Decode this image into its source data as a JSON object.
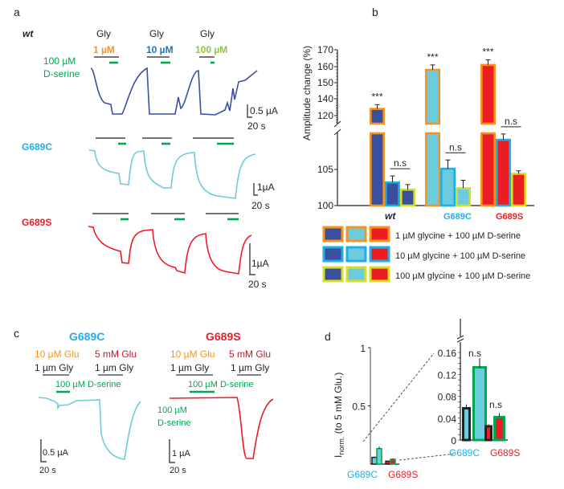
{
  "panel_labels": {
    "a": "a",
    "b": "b",
    "c": "c",
    "d": "d"
  },
  "colors": {
    "wt": "#3a4fa0",
    "g689c": "#6ccbdc",
    "g689s": "#ec1c24",
    "g689c_text": "#1cb0ea",
    "dserine": "#00a650",
    "gly_1uM": "#f7941d",
    "gly_10uM": "#1c75bc",
    "gly_100uM": "#8dc63f",
    "border_1uM": "#f7941d",
    "border_10uM": "#1cb0ea",
    "border_100uM": "#d7df23",
    "glu_5mM": "#be1e2d",
    "glu_10uM": "#f7941d"
  },
  "panel_a": {
    "genotypes": {
      "wt": "wt",
      "g689c": "G689C",
      "g689s": "G689S"
    },
    "gly_label": "Gly",
    "concentrations": [
      "1 µM",
      "10 µM",
      "100 µM"
    ],
    "dserine_label": [
      "100 µM",
      "D-serine"
    ],
    "scale_bars": {
      "wt": {
        "current": "0.5 µA",
        "time": "20 s"
      },
      "g689c": {
        "current": "1µA",
        "time": "20 s"
      },
      "g689s": {
        "current": "1µA",
        "time": "20 s"
      }
    }
  },
  "panel_c": {
    "titles": [
      "G689C",
      "G689S"
    ],
    "glu_low": "10 µM Glu",
    "glu_high": "5 mM Glu",
    "gly": "1 µm Gly",
    "dserine_bar_label": "100 µM D-serine",
    "dserine_side_label": [
      "100 µM",
      "D-serine"
    ],
    "scale_bars": [
      {
        "current": "0.5 µA",
        "time": "20 s"
      },
      {
        "current": "1 µA",
        "time": "20 s"
      }
    ]
  },
  "chart_data": [
    {
      "type": "bar",
      "panel": "b",
      "ylabel": "Amplitude change  (%)",
      "ylim": [
        100,
        170
      ],
      "axis_break": [
        110,
        115
      ],
      "yticks": [
        "100",
        "105",
        "120",
        "140",
        "150",
        "160",
        "170"
      ],
      "categories": [
        "wt",
        "G689C",
        "G689S"
      ],
      "series": [
        {
          "name": "1 µM glycine + 100 µM D-serine",
          "values": [
            128,
            158,
            161
          ],
          "errors": [
            5,
            3,
            3
          ],
          "significance": [
            "***",
            "***",
            "***"
          ]
        },
        {
          "name": "10 µM glycine + 100 µM D-serine",
          "values": [
            103.2,
            105.1,
            109.1
          ],
          "errors": [
            0.9,
            1.2,
            0.8
          ]
        },
        {
          "name": "100 µM glycine + 100 µM D-serine",
          "values": [
            102.2,
            102.4,
            104.4
          ],
          "errors": [
            0.7,
            1.1,
            0.4
          ]
        }
      ],
      "comparisons": [
        "n.s",
        "n.s",
        "n.s"
      ],
      "legend_placement": "bottom"
    },
    {
      "type": "bar",
      "panel": "d",
      "ylabel": {
        "main": "I",
        "sub": "norm.",
        "rest": " (to 5 mM Glu.)"
      },
      "ylim": [
        0,
        1
      ],
      "yticks": [
        "0.5",
        "1"
      ],
      "inset_ylim": [
        0,
        0.16
      ],
      "inset_yticks": [
        "0",
        "0.04",
        "0.08",
        "0.12",
        "0.16"
      ],
      "categories": [
        "G689C",
        "G689S"
      ],
      "series": [
        {
          "values": [
            0.058,
            0.025
          ],
          "errors": [
            0.007,
            0.004
          ]
        },
        {
          "values": [
            0.133,
            0.042
          ],
          "errors": [
            0.017,
            0.007
          ]
        }
      ],
      "comparisons": [
        "n.s",
        "n.s"
      ]
    }
  ]
}
